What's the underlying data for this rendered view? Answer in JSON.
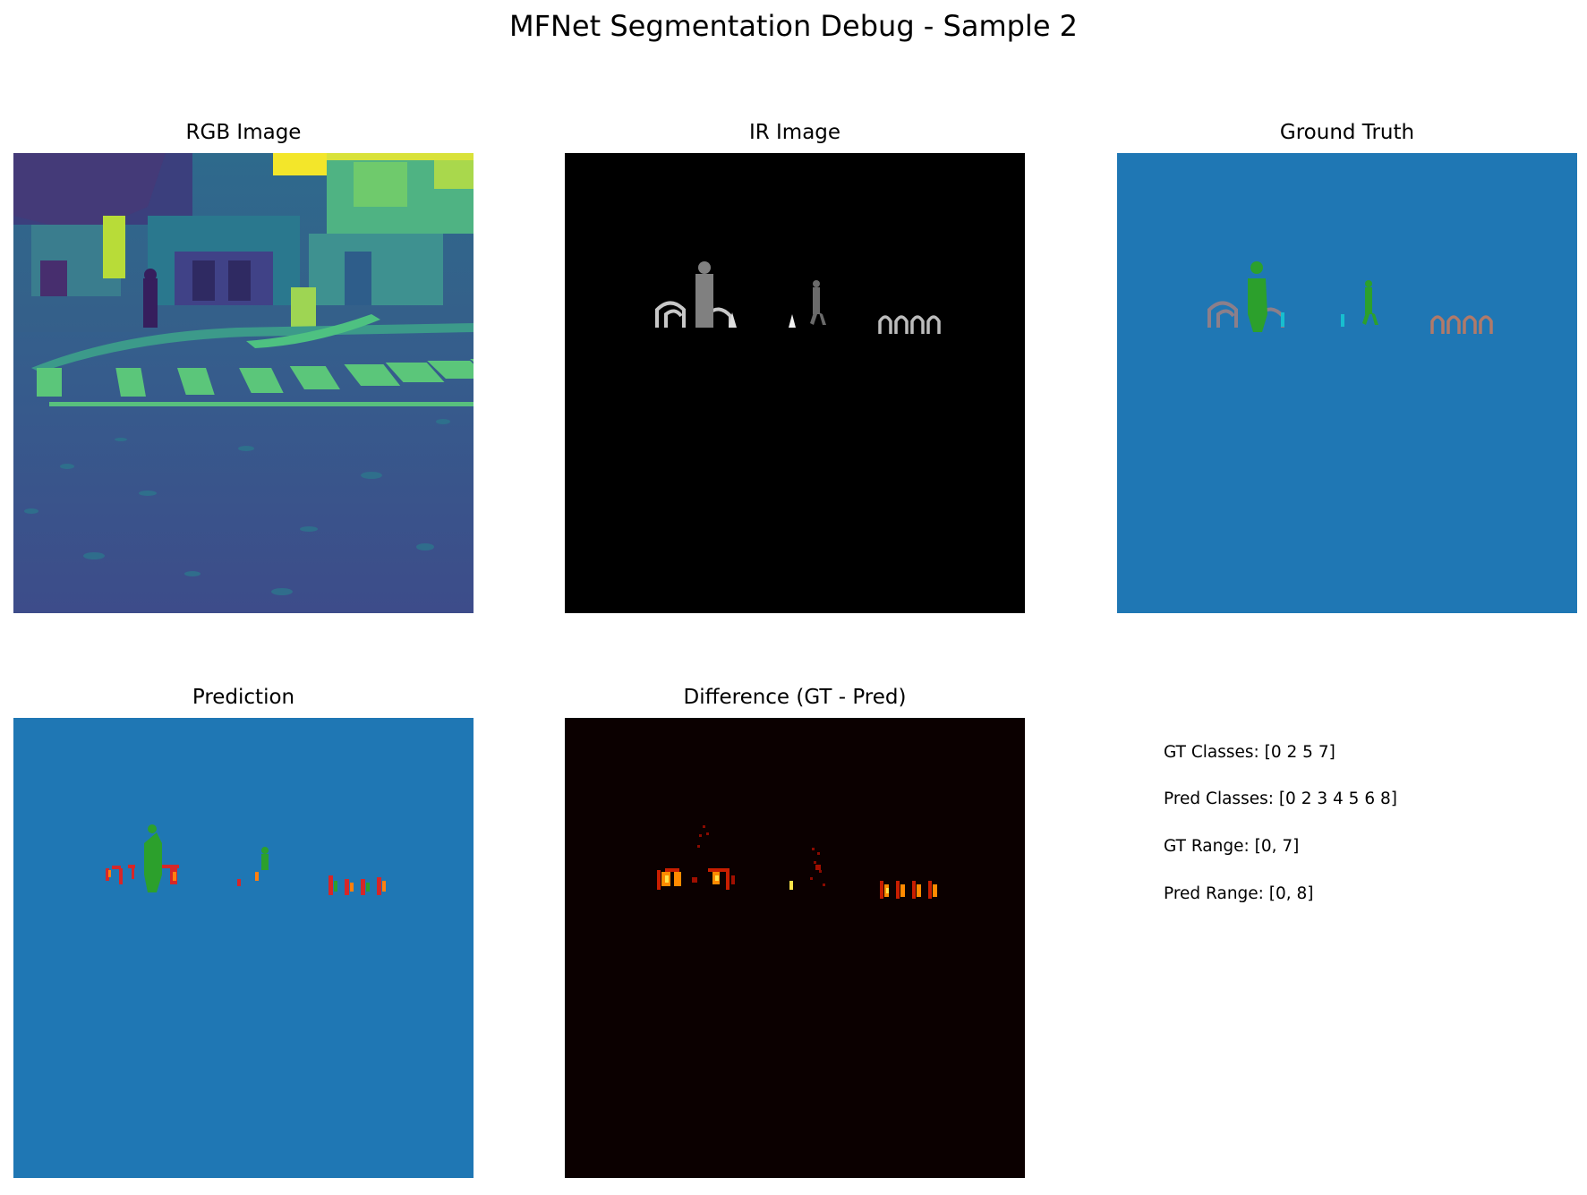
{
  "figure": {
    "title": "MFNet Segmentation Debug - Sample 2"
  },
  "panels": {
    "rgb": {
      "title": "RGB Image"
    },
    "ir": {
      "title": "IR Image"
    },
    "gt": {
      "title": "Ground Truth"
    },
    "pred": {
      "title": "Prediction"
    },
    "diff": {
      "title": "Difference (GT - Pred)"
    }
  },
  "info": {
    "gt_classes": "GT Classes: [0 2 5 7]",
    "pred_classes": "Pred Classes: [0 2 3 4 5 6 8]",
    "gt_range": "GT Range: [0, 7]",
    "pred_range": "Pred Range: [0, 8]"
  },
  "colors": {
    "segmentation_background": "#1f77b4",
    "person_class": "#2ca02c",
    "bike_class": "#8c564b",
    "ir_background": "#000000",
    "diff_background": "#0b0000"
  }
}
